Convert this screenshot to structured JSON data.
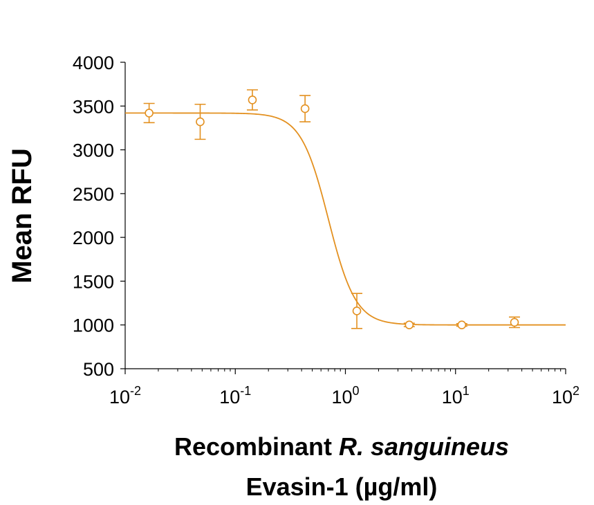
{
  "chart_data": {
    "type": "scatter",
    "title": "",
    "xlabel_line1_prefix": "Recombinant ",
    "xlabel_line1_italic": "R. sanguineus",
    "xlabel_line2": "Evasin-1 (µg/ml)",
    "ylabel": "Mean RFU",
    "x_scale": "log",
    "xlim": [
      0.01,
      100
    ],
    "ylim": [
      500,
      4000
    ],
    "x_ticks": [
      {
        "base": "10",
        "exp": "-2",
        "value": 0.01
      },
      {
        "base": "10",
        "exp": "-1",
        "value": 0.1
      },
      {
        "base": "10",
        "exp": "0",
        "value": 1
      },
      {
        "base": "10",
        "exp": "1",
        "value": 10
      },
      {
        "base": "10",
        "exp": "2",
        "value": 100
      }
    ],
    "y_ticks": [
      "500",
      "1000",
      "1500",
      "2000",
      "2500",
      "3000",
      "3500",
      "4000"
    ],
    "grid": false,
    "color": "#E3901F",
    "series": [
      {
        "points": [
          {
            "x": 0.0165,
            "y": 3420,
            "err": 110
          },
          {
            "x": 0.048,
            "y": 3320,
            "err": 200
          },
          {
            "x": 0.143,
            "y": 3570,
            "err": 115
          },
          {
            "x": 0.43,
            "y": 3470,
            "err": 150
          },
          {
            "x": 1.27,
            "y": 1160,
            "err": 200
          },
          {
            "x": 3.8,
            "y": 1000,
            "err": 20
          },
          {
            "x": 11.4,
            "y": 1000,
            "err": 15
          },
          {
            "x": 34.3,
            "y": 1030,
            "err": 60
          }
        ],
        "fit": {
          "model": "4PL",
          "top": 3420,
          "bottom": 1000,
          "ec50": 0.7,
          "hill": 3.5
        }
      }
    ]
  }
}
